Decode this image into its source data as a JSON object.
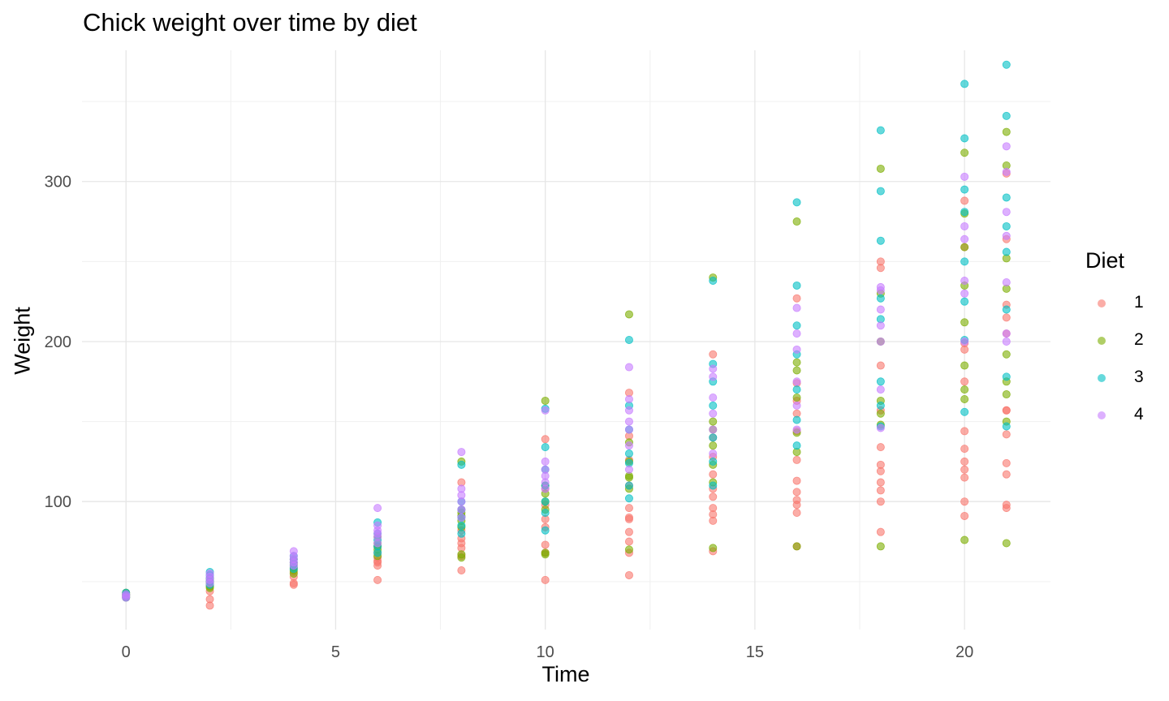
{
  "chart_data": {
    "type": "scatter",
    "title": "Chick weight over time by diet",
    "xlabel": "Time",
    "ylabel": "Weight",
    "xlim": [
      -1.05,
      22.05
    ],
    "ylim": [
      20,
      382
    ],
    "x_ticks": [
      0,
      5,
      10,
      15,
      20
    ],
    "y_ticks": [
      100,
      200,
      300
    ],
    "grid": true,
    "legend": {
      "title": "Diet",
      "position": "right"
    },
    "colors": {
      "1": "#F8766D",
      "2": "#7CAE00",
      "3": "#00BFC4",
      "4": "#C77CFF"
    },
    "series": [
      {
        "name": "1",
        "points": [
          [
            0,
            42
          ],
          [
            0,
            41
          ],
          [
            0,
            40
          ],
          [
            0,
            43
          ],
          [
            0,
            42
          ],
          [
            2,
            35
          ],
          [
            2,
            39
          ],
          [
            2,
            44
          ],
          [
            2,
            47
          ],
          [
            2,
            49
          ],
          [
            2,
            51
          ],
          [
            4,
            48
          ],
          [
            4,
            49
          ],
          [
            4,
            53
          ],
          [
            4,
            56
          ],
          [
            4,
            58
          ],
          [
            4,
            62
          ],
          [
            6,
            51
          ],
          [
            6,
            60
          ],
          [
            6,
            62
          ],
          [
            6,
            63
          ],
          [
            6,
            65
          ],
          [
            6,
            68
          ],
          [
            6,
            72
          ],
          [
            8,
            57
          ],
          [
            8,
            66
          ],
          [
            8,
            71
          ],
          [
            8,
            74
          ],
          [
            8,
            77
          ],
          [
            8,
            82
          ],
          [
            8,
            95
          ],
          [
            8,
            112
          ],
          [
            10,
            51
          ],
          [
            10,
            68
          ],
          [
            10,
            73
          ],
          [
            10,
            84
          ],
          [
            10,
            89
          ],
          [
            10,
            98
          ],
          [
            10,
            108
          ],
          [
            10,
            139
          ],
          [
            12,
            54
          ],
          [
            12,
            68
          ],
          [
            12,
            75
          ],
          [
            12,
            81
          ],
          [
            12,
            89
          ],
          [
            12,
            90
          ],
          [
            12,
            96
          ],
          [
            12,
            110
          ],
          [
            12,
            126
          ],
          [
            12,
            141
          ],
          [
            12,
            168
          ],
          [
            14,
            69
          ],
          [
            14,
            88
          ],
          [
            14,
            92
          ],
          [
            14,
            96
          ],
          [
            14,
            103
          ],
          [
            14,
            108
          ],
          [
            14,
            117
          ],
          [
            14,
            128
          ],
          [
            14,
            140
          ],
          [
            14,
            192
          ],
          [
            16,
            72
          ],
          [
            16,
            93
          ],
          [
            16,
            98
          ],
          [
            16,
            101
          ],
          [
            16,
            106
          ],
          [
            16,
            113
          ],
          [
            16,
            126
          ],
          [
            16,
            144
          ],
          [
            16,
            155
          ],
          [
            16,
            163
          ],
          [
            16,
            174
          ],
          [
            16,
            227
          ],
          [
            18,
            81
          ],
          [
            18,
            100
          ],
          [
            18,
            107
          ],
          [
            18,
            112
          ],
          [
            18,
            119
          ],
          [
            18,
            123
          ],
          [
            18,
            134
          ],
          [
            18,
            157
          ],
          [
            18,
            185
          ],
          [
            18,
            246
          ],
          [
            18,
            250
          ],
          [
            20,
            91
          ],
          [
            20,
            100
          ],
          [
            20,
            115
          ],
          [
            20,
            120
          ],
          [
            20,
            125
          ],
          [
            20,
            133
          ],
          [
            20,
            144
          ],
          [
            20,
            175
          ],
          [
            20,
            195
          ],
          [
            20,
            199
          ],
          [
            20,
            259
          ],
          [
            20,
            288
          ],
          [
            21,
            96
          ],
          [
            21,
            98
          ],
          [
            21,
            117
          ],
          [
            21,
            124
          ],
          [
            21,
            142
          ],
          [
            21,
            157
          ],
          [
            21,
            157
          ],
          [
            21,
            205
          ],
          [
            21,
            215
          ],
          [
            21,
            223
          ],
          [
            21,
            264
          ],
          [
            21,
            305
          ]
        ]
      },
      {
        "name": "2",
        "points": [
          [
            0,
            40
          ],
          [
            0,
            41
          ],
          [
            0,
            42
          ],
          [
            0,
            43
          ],
          [
            2,
            46
          ],
          [
            2,
            47
          ],
          [
            2,
            49
          ],
          [
            2,
            50
          ],
          [
            2,
            52
          ],
          [
            4,
            55
          ],
          [
            4,
            57
          ],
          [
            4,
            59
          ],
          [
            4,
            61
          ],
          [
            4,
            64
          ],
          [
            6,
            66
          ],
          [
            6,
            70
          ],
          [
            6,
            72
          ],
          [
            6,
            74
          ],
          [
            6,
            78
          ],
          [
            8,
            65
          ],
          [
            8,
            67
          ],
          [
            8,
            84
          ],
          [
            8,
            88
          ],
          [
            8,
            91
          ],
          [
            8,
            93
          ],
          [
            8,
            125
          ],
          [
            10,
            67
          ],
          [
            10,
            68
          ],
          [
            10,
            95
          ],
          [
            10,
            100
          ],
          [
            10,
            105
          ],
          [
            10,
            110
          ],
          [
            10,
            163
          ],
          [
            12,
            70
          ],
          [
            12,
            108
          ],
          [
            12,
            115
          ],
          [
            12,
            116
          ],
          [
            12,
            125
          ],
          [
            12,
            137
          ],
          [
            12,
            217
          ],
          [
            14,
            71
          ],
          [
            14,
            112
          ],
          [
            14,
            123
          ],
          [
            14,
            135
          ],
          [
            14,
            145
          ],
          [
            14,
            150
          ],
          [
            14,
            240
          ],
          [
            16,
            72
          ],
          [
            16,
            131
          ],
          [
            16,
            143
          ],
          [
            16,
            165
          ],
          [
            16,
            182
          ],
          [
            16,
            187
          ],
          [
            16,
            275
          ],
          [
            18,
            72
          ],
          [
            18,
            148
          ],
          [
            18,
            155
          ],
          [
            18,
            163
          ],
          [
            18,
            200
          ],
          [
            18,
            230
          ],
          [
            18,
            308
          ],
          [
            20,
            76
          ],
          [
            20,
            164
          ],
          [
            20,
            170
          ],
          [
            20,
            185
          ],
          [
            20,
            212
          ],
          [
            20,
            235
          ],
          [
            20,
            259
          ],
          [
            20,
            280
          ],
          [
            20,
            318
          ],
          [
            21,
            74
          ],
          [
            21,
            150
          ],
          [
            21,
            167
          ],
          [
            21,
            175
          ],
          [
            21,
            192
          ],
          [
            21,
            233
          ],
          [
            21,
            252
          ],
          [
            21,
            310
          ],
          [
            21,
            331
          ]
        ]
      },
      {
        "name": "3",
        "points": [
          [
            0,
            40
          ],
          [
            0,
            41
          ],
          [
            0,
            42
          ],
          [
            0,
            43
          ],
          [
            2,
            48
          ],
          [
            2,
            50
          ],
          [
            2,
            52
          ],
          [
            2,
            54
          ],
          [
            2,
            56
          ],
          [
            4,
            58
          ],
          [
            4,
            60
          ],
          [
            4,
            62
          ],
          [
            4,
            64
          ],
          [
            4,
            66
          ],
          [
            6,
            68
          ],
          [
            6,
            72
          ],
          [
            6,
            76
          ],
          [
            6,
            80
          ],
          [
            6,
            87
          ],
          [
            8,
            80
          ],
          [
            8,
            85
          ],
          [
            8,
            90
          ],
          [
            8,
            95
          ],
          [
            8,
            100
          ],
          [
            8,
            123
          ],
          [
            10,
            82
          ],
          [
            10,
            93
          ],
          [
            10,
            100
          ],
          [
            10,
            110
          ],
          [
            10,
            120
          ],
          [
            10,
            134
          ],
          [
            10,
            158
          ],
          [
            12,
            102
          ],
          [
            12,
            110
          ],
          [
            12,
            124
          ],
          [
            12,
            130
          ],
          [
            12,
            145
          ],
          [
            12,
            160
          ],
          [
            12,
            201
          ],
          [
            14,
            110
          ],
          [
            14,
            125
          ],
          [
            14,
            140
          ],
          [
            14,
            160
          ],
          [
            14,
            175
          ],
          [
            14,
            186
          ],
          [
            14,
            238
          ],
          [
            16,
            135
          ],
          [
            16,
            151
          ],
          [
            16,
            170
          ],
          [
            16,
            192
          ],
          [
            16,
            210
          ],
          [
            16,
            235
          ],
          [
            16,
            287
          ],
          [
            18,
            147
          ],
          [
            18,
            160
          ],
          [
            18,
            175
          ],
          [
            18,
            214
          ],
          [
            18,
            227
          ],
          [
            18,
            263
          ],
          [
            18,
            294
          ],
          [
            18,
            332
          ],
          [
            20,
            156
          ],
          [
            20,
            201
          ],
          [
            20,
            225
          ],
          [
            20,
            250
          ],
          [
            20,
            281
          ],
          [
            20,
            295
          ],
          [
            20,
            327
          ],
          [
            20,
            361
          ],
          [
            21,
            147
          ],
          [
            21,
            178
          ],
          [
            21,
            220
          ],
          [
            21,
            256
          ],
          [
            21,
            272
          ],
          [
            21,
            290
          ],
          [
            21,
            341
          ],
          [
            21,
            373
          ]
        ]
      },
      {
        "name": "4",
        "points": [
          [
            0,
            40
          ],
          [
            0,
            41
          ],
          [
            0,
            42
          ],
          [
            2,
            49
          ],
          [
            2,
            51
          ],
          [
            2,
            53
          ],
          [
            2,
            55
          ],
          [
            4,
            60
          ],
          [
            4,
            62
          ],
          [
            4,
            64
          ],
          [
            4,
            66
          ],
          [
            4,
            69
          ],
          [
            6,
            74
          ],
          [
            6,
            78
          ],
          [
            6,
            80
          ],
          [
            6,
            82
          ],
          [
            6,
            85
          ],
          [
            6,
            96
          ],
          [
            8,
            90
          ],
          [
            8,
            95
          ],
          [
            8,
            100
          ],
          [
            8,
            104
          ],
          [
            8,
            108
          ],
          [
            8,
            131
          ],
          [
            10,
            108
          ],
          [
            10,
            112
          ],
          [
            10,
            116
          ],
          [
            10,
            120
          ],
          [
            10,
            125
          ],
          [
            10,
            157
          ],
          [
            12,
            120
          ],
          [
            12,
            135
          ],
          [
            12,
            145
          ],
          [
            12,
            150
          ],
          [
            12,
            157
          ],
          [
            12,
            164
          ],
          [
            12,
            184
          ],
          [
            14,
            130
          ],
          [
            14,
            145
          ],
          [
            14,
            155
          ],
          [
            14,
            165
          ],
          [
            14,
            178
          ],
          [
            14,
            183
          ],
          [
            16,
            145
          ],
          [
            16,
            160
          ],
          [
            16,
            175
          ],
          [
            16,
            195
          ],
          [
            16,
            205
          ],
          [
            16,
            221
          ],
          [
            18,
            146
          ],
          [
            18,
            170
          ],
          [
            18,
            200
          ],
          [
            18,
            210
          ],
          [
            18,
            220
          ],
          [
            18,
            232
          ],
          [
            18,
            234
          ],
          [
            20,
            200
          ],
          [
            20,
            230
          ],
          [
            20,
            238
          ],
          [
            20,
            264
          ],
          [
            20,
            272
          ],
          [
            20,
            303
          ],
          [
            21,
            200
          ],
          [
            21,
            205
          ],
          [
            21,
            237
          ],
          [
            21,
            266
          ],
          [
            21,
            281
          ],
          [
            21,
            306
          ],
          [
            21,
            322
          ]
        ]
      }
    ]
  }
}
